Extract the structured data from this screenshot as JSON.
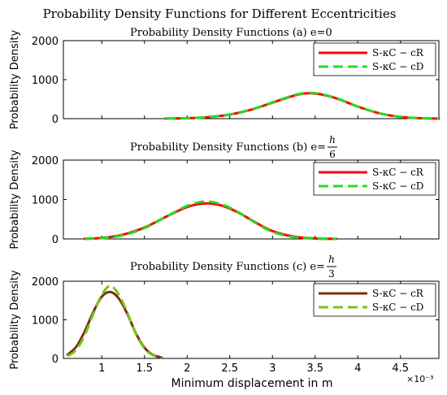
{
  "figure_title": "Probability Density Functions for Different Eccentricities",
  "xlabel": "Minimum displacement in m",
  "x_exponent": "×10⁻³",
  "chart_data": [
    {
      "type": "line",
      "title": "Probability Density Functions (a) e=0",
      "title_prefix": "Probability Density Functions (a) e=",
      "e_label": {
        "numerator": "",
        "denominator": "",
        "plain": "0"
      },
      "ylabel": "Probability Density",
      "xlim": [
        0.55,
        4.95
      ],
      "ylim": [
        0,
        2000
      ],
      "yticks": [
        0,
        1000,
        2000
      ],
      "xticks": [],
      "legend_position": "top-right",
      "series": [
        {
          "name": "S-κC − cR",
          "color": "#ff0000",
          "dash": "solid",
          "x": [
            1.75,
            2.0,
            2.25,
            2.5,
            2.75,
            3.0,
            3.25,
            3.4,
            3.55,
            3.75,
            4.0,
            4.25,
            4.5,
            4.75,
            4.95
          ],
          "y": [
            3,
            12,
            40,
            105,
            230,
            410,
            590,
            650,
            630,
            520,
            310,
            140,
            45,
            10,
            2
          ]
        },
        {
          "name": "S-κC − cD",
          "color": "#22dd22",
          "dash": "dashed",
          "x": [
            1.75,
            2.0,
            2.25,
            2.5,
            2.75,
            3.0,
            3.25,
            3.4,
            3.55,
            3.75,
            4.0,
            4.25,
            4.5,
            4.75,
            4.95
          ],
          "y": [
            3,
            12,
            42,
            108,
            235,
            418,
            600,
            662,
            640,
            526,
            312,
            140,
            44,
            10,
            2
          ]
        }
      ]
    },
    {
      "type": "line",
      "title": "Probability Density Functions (b) e=h/6",
      "title_prefix": "Probability Density Functions (b) e=",
      "e_label": {
        "numerator": "h",
        "denominator": "6",
        "plain": ""
      },
      "ylabel": "Probability Density",
      "xlim": [
        0.55,
        4.95
      ],
      "ylim": [
        0,
        2000
      ],
      "yticks": [
        0,
        1000,
        2000
      ],
      "xticks": [],
      "legend_position": "top-right",
      "series": [
        {
          "name": "S-κC − cR",
          "color": "#ff0000",
          "dash": "solid",
          "x": [
            0.8,
            1.0,
            1.25,
            1.5,
            1.75,
            2.0,
            2.2,
            2.4,
            2.6,
            2.8,
            3.0,
            3.25,
            3.5,
            3.75
          ],
          "y": [
            5,
            25,
            110,
            290,
            560,
            810,
            900,
            850,
            670,
            420,
            200,
            60,
            12,
            2
          ]
        },
        {
          "name": "S-κC − cD",
          "color": "#22dd22",
          "dash": "dashed",
          "x": [
            0.8,
            1.0,
            1.25,
            1.5,
            1.75,
            2.0,
            2.2,
            2.4,
            2.6,
            2.8,
            3.0,
            3.25,
            3.5,
            3.75
          ],
          "y": [
            3,
            18,
            95,
            275,
            560,
            840,
            950,
            880,
            680,
            410,
            180,
            45,
            8,
            1
          ]
        }
      ]
    },
    {
      "type": "line",
      "title": "Probability Density Functions (c) e=h/3",
      "title_prefix": "Probability Density Functions (c) e=",
      "e_label": {
        "numerator": "h",
        "denominator": "3",
        "plain": ""
      },
      "ylabel": "Probability Density",
      "xlim": [
        0.55,
        4.95
      ],
      "ylim": [
        0,
        2000
      ],
      "yticks": [
        0,
        1000,
        2000
      ],
      "xticks": [
        1,
        1.5,
        2,
        2.5,
        3,
        3.5,
        4,
        4.5
      ],
      "legend_position": "top-right",
      "series": [
        {
          "name": "S-κC − cR",
          "color": "#7a2e14",
          "dash": "solid",
          "x": [
            0.6,
            0.7,
            0.8,
            0.9,
            1.0,
            1.1,
            1.2,
            1.3,
            1.4,
            1.5,
            1.6,
            1.7
          ],
          "y": [
            100,
            300,
            700,
            1200,
            1600,
            1720,
            1550,
            1150,
            650,
            280,
            90,
            25
          ]
        },
        {
          "name": "S-κC − cD",
          "color": "#7cc21a",
          "dash": "dashed",
          "x": [
            0.6,
            0.7,
            0.8,
            0.9,
            1.0,
            1.1,
            1.2,
            1.3,
            1.4,
            1.5,
            1.6,
            1.7
          ],
          "y": [
            60,
            220,
            600,
            1150,
            1650,
            1880,
            1650,
            1180,
            640,
            260,
            80,
            20
          ]
        }
      ]
    }
  ]
}
